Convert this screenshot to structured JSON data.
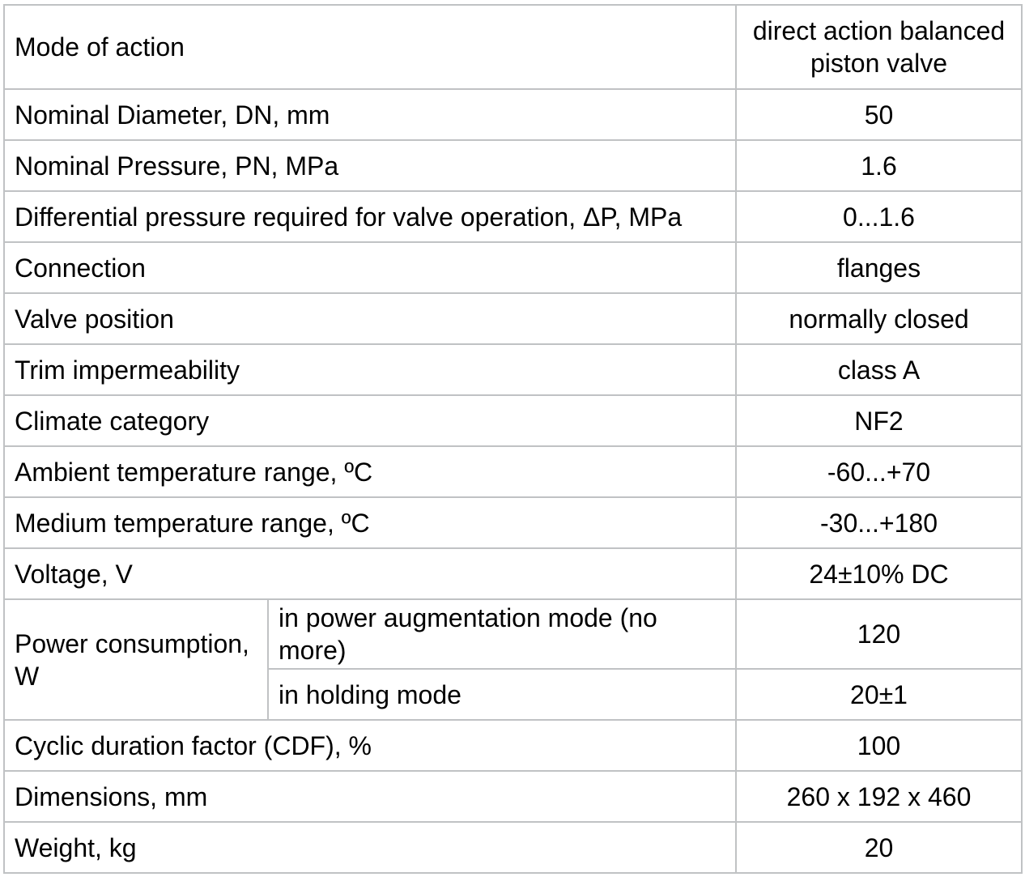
{
  "colors": {
    "border": "#c0c2c4",
    "text": "#000000",
    "background": "#ffffff"
  },
  "table": {
    "rows": [
      {
        "label": "Mode of action",
        "value": "direct action balanced piston valve"
      },
      {
        "label": "Nominal Diameter, DN, mm",
        "value": "50"
      },
      {
        "label": "Nominal Pressure, PN, MPa",
        "value": "1.6"
      },
      {
        "label": "Differential pressure required for valve operation, ΔP, MPa",
        "value": "0...1.6"
      },
      {
        "label": "Connection",
        "value": "flanges"
      },
      {
        "label": "Valve position",
        "value": "normally closed"
      },
      {
        "label": "Trim impermeability",
        "value": "class A"
      },
      {
        "label": "Climate category",
        "value": "NF2"
      },
      {
        "label": "Ambient temperature range, ºC",
        "value": "-60...+70"
      },
      {
        "label": "Medium temperature range, ºC",
        "value": "-30...+180"
      },
      {
        "label": "Voltage, V",
        "value": "24±10% DC"
      }
    ],
    "power_group": {
      "label": "Power consumption, W",
      "sub_rows": [
        {
          "label": "in power augmentation mode (no more)",
          "value": "120"
        },
        {
          "label": "in holding mode",
          "value": "20±1"
        }
      ]
    },
    "rows_after": [
      {
        "label": "Cyclic duration factor (CDF), %",
        "value": "100"
      },
      {
        "label": "Dimensions, mm",
        "value": "260 x 192 x 460"
      },
      {
        "label": "Weight, kg",
        "value": "20"
      }
    ]
  }
}
